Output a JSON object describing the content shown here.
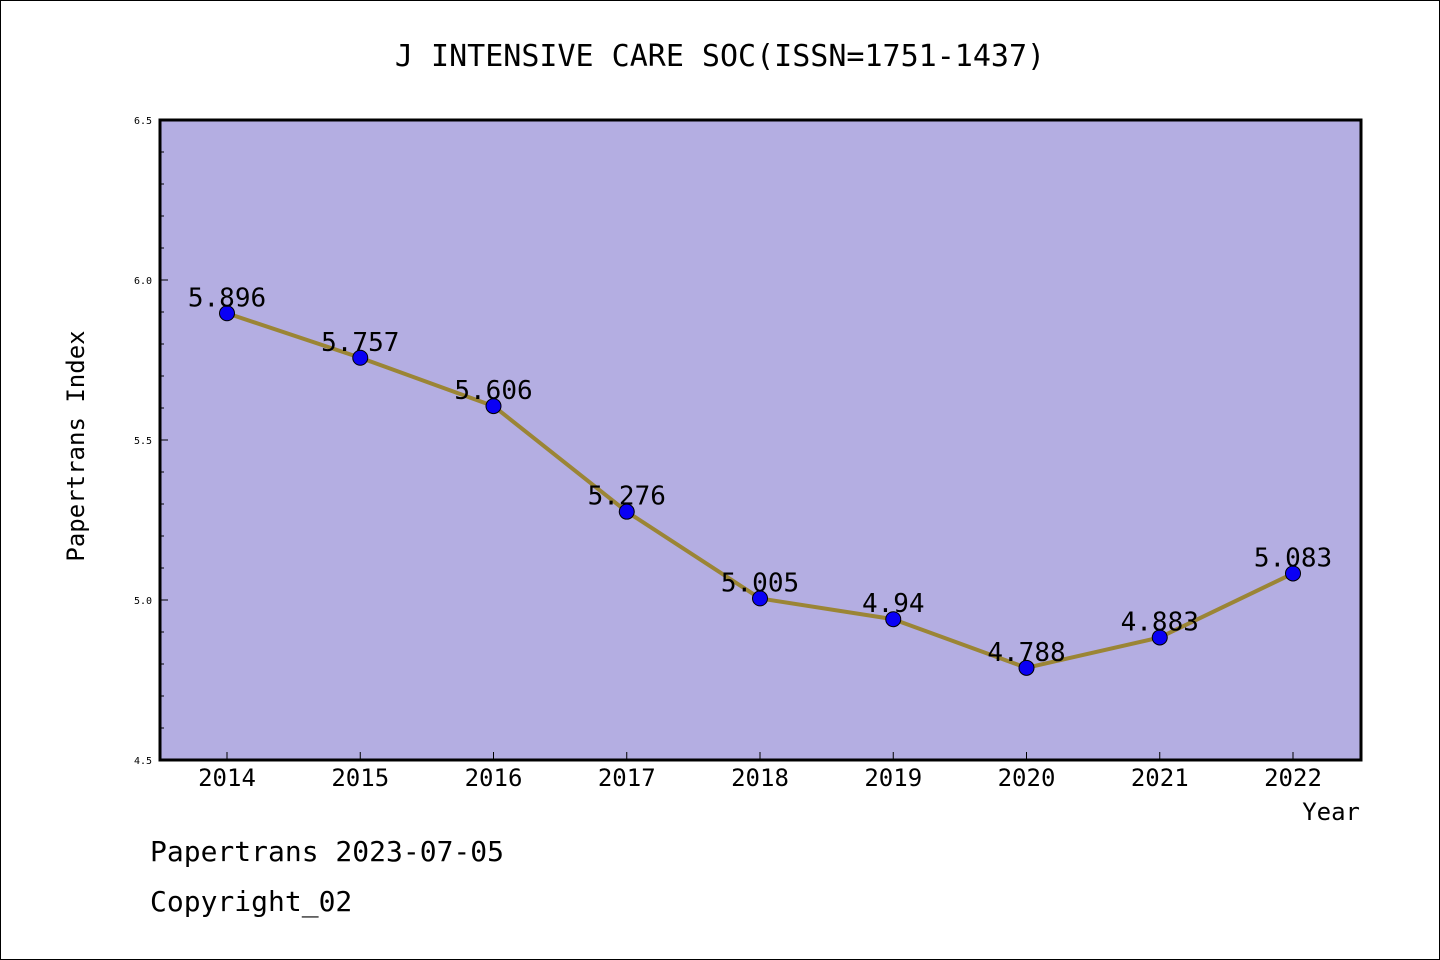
{
  "chart_data": {
    "type": "line",
    "title": "J INTENSIVE CARE SOC(ISSN=1751-1437)",
    "xlabel": "Year",
    "ylabel": "Papertrans Index",
    "categories": [
      "2014",
      "2015",
      "2016",
      "2017",
      "2018",
      "2019",
      "2020",
      "2021",
      "2022"
    ],
    "series": [
      {
        "values": [
          5.896,
          5.757,
          5.606,
          5.276,
          5.005,
          4.94,
          4.788,
          4.883,
          5.083
        ],
        "labels": [
          "5.896",
          "5.757",
          "5.606",
          "5.276",
          "5.005",
          "4.94",
          "4.788",
          "4.883",
          "5.083"
        ]
      }
    ],
    "ylim": [
      4.5,
      6.5
    ],
    "yticks": [
      "4.5",
      "5.0",
      "5.5",
      "6.0",
      "6.5"
    ],
    "grid": false,
    "colors": {
      "plot_background": "#b4aee2",
      "line": "#9b8535",
      "marker": "#0a00f5"
    }
  },
  "footer": {
    "date_line": "Papertrans 2023-07-05",
    "copyright_line": "Copyright_02"
  }
}
